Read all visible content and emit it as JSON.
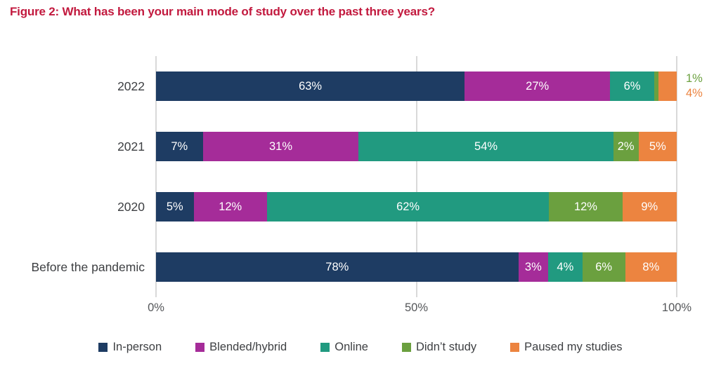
{
  "title": {
    "text": "Figure 2: What has been your main mode of study over the past three years?",
    "color": "#c2193e"
  },
  "chart_data": {
    "type": "bar",
    "orientation": "horizontal",
    "stacked": true,
    "title": "Figure 2: What has been your main mode of study over the past three years?",
    "categories": [
      "2022",
      "2021",
      "2020",
      "Before the pandemic"
    ],
    "series": [
      {
        "name": "In-person",
        "color": "#1e3c63",
        "values": [
          63,
          7,
          5,
          78
        ]
      },
      {
        "name": "Blended/hybrid",
        "color": "#a52c99",
        "values": [
          27,
          31,
          12,
          3
        ]
      },
      {
        "name": "Online",
        "color": "#219a80",
        "values": [
          6,
          54,
          62,
          4
        ]
      },
      {
        "name": "Didn’t study",
        "color": "#6ba03f",
        "values": [
          1,
          2,
          12,
          6
        ]
      },
      {
        "name": "Paused my studies",
        "color": "#ec8440",
        "values": [
          4,
          5,
          9,
          8
        ]
      }
    ],
    "value_label_format": "{v}%",
    "outside_labels": [
      {
        "row": 0,
        "series": "Didn’t study",
        "text": "1%"
      },
      {
        "row": 0,
        "series": "Paused my studies",
        "text": "4%"
      }
    ],
    "xlabel": "",
    "ylabel": "",
    "xlim": [
      0,
      100
    ],
    "x_ticks": [
      {
        "label": "0%",
        "value": 0
      },
      {
        "label": "50%",
        "value": 50
      },
      {
        "label": "100%",
        "value": 100
      }
    ],
    "grid": true,
    "gridline_color": "#d9d9d9",
    "legend_position": "bottom"
  }
}
